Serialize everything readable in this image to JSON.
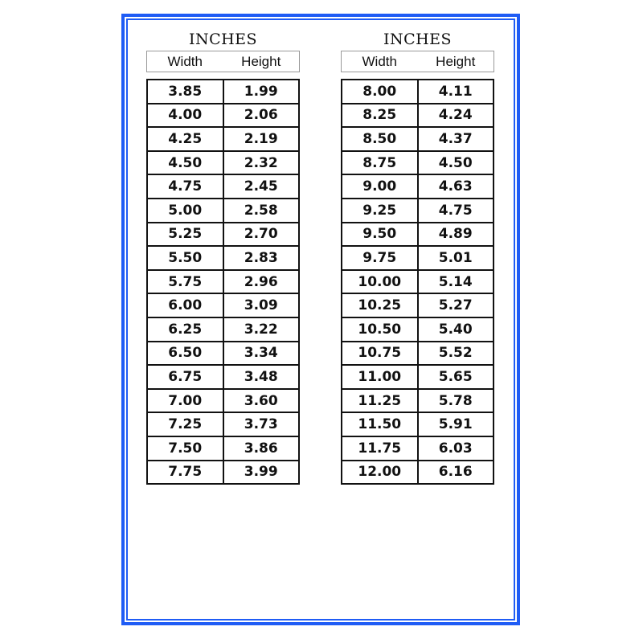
{
  "frame_color": "#1f5cf5",
  "tables": [
    {
      "title": "INCHES",
      "headers": [
        "Width",
        "Height"
      ],
      "rows": [
        [
          "3.85",
          "1.99"
        ],
        [
          "4.00",
          "2.06"
        ],
        [
          "4.25",
          "2.19"
        ],
        [
          "4.50",
          "2.32"
        ],
        [
          "4.75",
          "2.45"
        ],
        [
          "5.00",
          "2.58"
        ],
        [
          "5.25",
          "2.70"
        ],
        [
          "5.50",
          "2.83"
        ],
        [
          "5.75",
          "2.96"
        ],
        [
          "6.00",
          "3.09"
        ],
        [
          "6.25",
          "3.22"
        ],
        [
          "6.50",
          "3.34"
        ],
        [
          "6.75",
          "3.48"
        ],
        [
          "7.00",
          "3.60"
        ],
        [
          "7.25",
          "3.73"
        ],
        [
          "7.50",
          "3.86"
        ],
        [
          "7.75",
          "3.99"
        ]
      ]
    },
    {
      "title": "INCHES",
      "headers": [
        "Width",
        "Height"
      ],
      "rows": [
        [
          "8.00",
          "4.11"
        ],
        [
          "8.25",
          "4.24"
        ],
        [
          "8.50",
          "4.37"
        ],
        [
          "8.75",
          "4.50"
        ],
        [
          "9.00",
          "4.63"
        ],
        [
          "9.25",
          "4.75"
        ],
        [
          "9.50",
          "4.89"
        ],
        [
          "9.75",
          "5.01"
        ],
        [
          "10.00",
          "5.14"
        ],
        [
          "10.25",
          "5.27"
        ],
        [
          "10.50",
          "5.40"
        ],
        [
          "10.75",
          "5.52"
        ],
        [
          "11.00",
          "5.65"
        ],
        [
          "11.25",
          "5.78"
        ],
        [
          "11.50",
          "5.91"
        ],
        [
          "11.75",
          "6.03"
        ],
        [
          "12.00",
          "6.16"
        ]
      ]
    }
  ]
}
